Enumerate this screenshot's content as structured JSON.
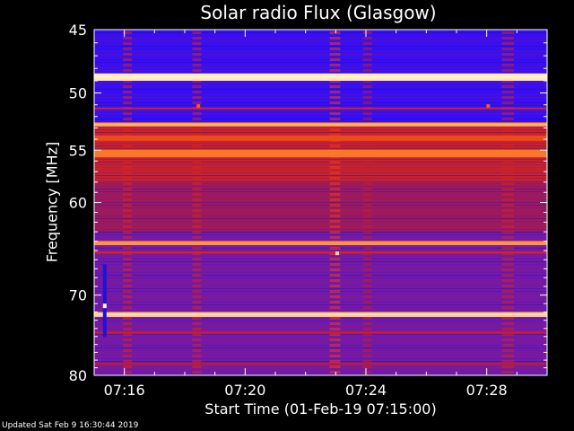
{
  "chart_data": {
    "type": "heatmap",
    "title": "Solar radio Flux (Glasgow)",
    "xlabel": "Start Time (01-Feb-19 07:15:00)",
    "ylabel": "Frequency [MHz]",
    "x_unit": "minutes after 07:15:00",
    "x_range": [
      0.0,
      15.0
    ],
    "ylim": [
      45,
      80
    ],
    "y_scale": "log",
    "x_ticks": [
      {
        "value": 1,
        "label": "07:16"
      },
      {
        "value": 5,
        "label": "07:20"
      },
      {
        "value": 9,
        "label": "07:24"
      },
      {
        "value": 13,
        "label": "07:28"
      }
    ],
    "y_ticks": [
      {
        "value": 45,
        "label": "45"
      },
      {
        "value": 50,
        "label": "50"
      },
      {
        "value": 55,
        "label": "55"
      },
      {
        "value": 60,
        "label": "60"
      },
      {
        "value": 70,
        "label": "70"
      },
      {
        "value": 80,
        "label": "80"
      }
    ],
    "colormap": [
      "#000000",
      "#2a0cff",
      "#6a1ab8",
      "#b01a3a",
      "#e82a10",
      "#ff8a28",
      "#fff2c8"
    ],
    "background_bands": [
      {
        "from": 45,
        "to": 52.5,
        "level": 0.2
      },
      {
        "from": 52.5,
        "to": 58.0,
        "level": 0.58
      },
      {
        "from": 58.0,
        "to": 63.0,
        "level": 0.46
      },
      {
        "from": 63.0,
        "to": 80.0,
        "level": 0.36
      }
    ],
    "bright_lines": [
      {
        "freq": 48.7,
        "level": 0.98,
        "width": 0.6
      },
      {
        "freq": 51.3,
        "level": 0.6,
        "width": 0.15
      },
      {
        "freq": 52.7,
        "level": 0.86,
        "width": 0.35
      },
      {
        "freq": 53.9,
        "level": 0.72,
        "width": 0.5
      },
      {
        "freq": 55.3,
        "level": 0.8,
        "width": 0.7
      },
      {
        "freq": 64.2,
        "level": 0.85,
        "width": 0.45
      },
      {
        "freq": 65.2,
        "level": 0.6,
        "width": 0.25
      },
      {
        "freq": 72.3,
        "level": 0.92,
        "width": 0.6
      },
      {
        "freq": 74.5,
        "level": 0.55,
        "width": 0.3
      },
      {
        "freq": 78.5,
        "level": 0.52,
        "width": 0.3
      }
    ],
    "time_features": [
      {
        "start": 0.95,
        "end": 1.25,
        "level": 0.62
      },
      {
        "start": 3.25,
        "end": 3.55,
        "level": 0.62
      },
      {
        "start": 7.8,
        "end": 8.15,
        "level": 0.7
      },
      {
        "start": 8.9,
        "end": 9.2,
        "level": 0.55
      },
      {
        "start": 13.5,
        "end": 13.9,
        "level": 0.6
      }
    ],
    "spots": [
      {
        "time": 3.45,
        "freq": 51.1,
        "level": 0.75
      },
      {
        "time": 13.05,
        "freq": 51.1,
        "level": 0.75
      },
      {
        "time": 8.05,
        "freq": 65.3,
        "level": 0.95
      }
    ],
    "marker_segment": {
      "time": 0.35,
      "freq_from": 66.5,
      "freq_to": 75.0
    }
  },
  "footer": "Updated Sat Feb  9 16:30:44 2019"
}
